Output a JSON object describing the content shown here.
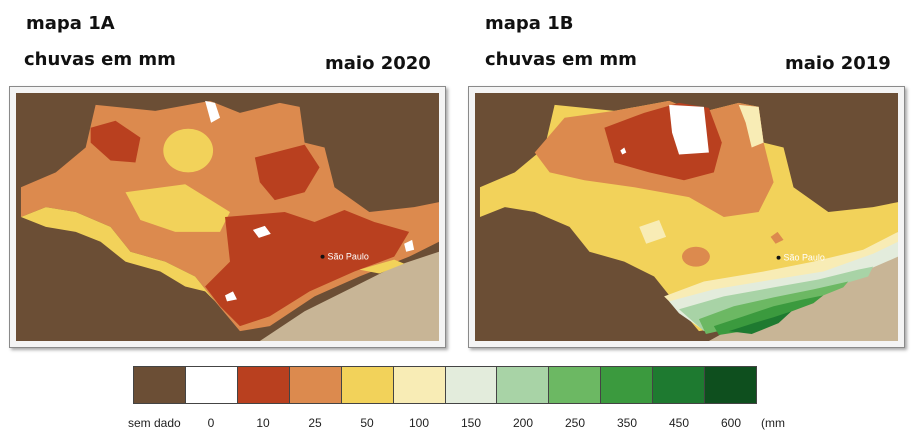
{
  "map_a": {
    "title": "mapa 1A",
    "subtitle": "chuvas em mm",
    "date": "maio 2020",
    "city_label": "São Paulo"
  },
  "map_b": {
    "title": "mapa 1B",
    "subtitle": "chuvas em mm",
    "date": "maio 2019",
    "city_label": "São Paulo"
  },
  "legend": {
    "items": [
      {
        "label": "sem dado",
        "color": "#6b4e35"
      },
      {
        "label": "0",
        "color": "#ffffff"
      },
      {
        "label": "10",
        "color": "#b9401f"
      },
      {
        "label": "25",
        "color": "#dc8a4e"
      },
      {
        "label": "50",
        "color": "#f2d25a"
      },
      {
        "label": "100",
        "color": "#f8ecb5"
      },
      {
        "label": "150",
        "color": "#e3ecdc"
      },
      {
        "label": "200",
        "color": "#a8d3a6"
      },
      {
        "label": "250",
        "color": "#6cb863"
      },
      {
        "label": "350",
        "color": "#3b9a3e"
      },
      {
        "label": "450",
        "color": "#1e7a30"
      },
      {
        "label": "600",
        "color": "#0e4f1e"
      }
    ],
    "unit": "(mm"
  }
}
